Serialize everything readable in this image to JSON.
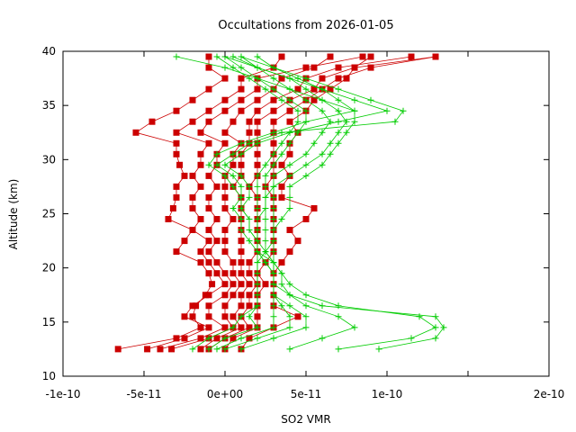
{
  "chart_data": {
    "type": "line",
    "title": "Occultations from 2026-01-05",
    "xlabel": "SO2 VMR",
    "ylabel": "Altitude (km)",
    "xlim": [
      -1e-10,
      2e-10
    ],
    "ylim": [
      10,
      40
    ],
    "x_ticks": [
      -1e-10,
      -5e-11,
      0,
      5e-11,
      1e-10,
      1.5e-10,
      2e-10
    ],
    "x_tick_labels": [
      "-1e-10",
      "-5e-11",
      "0e+00",
      "5e-11",
      "1e-10",
      "",
      "2e-10"
    ],
    "y_ticks": [
      10,
      15,
      20,
      25,
      30,
      35,
      40
    ],
    "y_tick_labels": [
      "10",
      "15",
      "20",
      "25",
      "30",
      "35",
      "40"
    ],
    "grid": false,
    "legend": "none",
    "colors": {
      "red_series": "#cc0000",
      "green_series": "#00cc00",
      "axis": "#000000"
    },
    "altitudes": [
      12.5,
      13.5,
      14.5,
      15.5,
      16.5,
      17.5,
      18.5,
      19.5,
      20.5,
      21.5,
      22.5,
      23.5,
      24.5,
      25.5,
      26.5,
      27.5,
      28.5,
      29.5,
      30.5,
      31.5,
      32.5,
      33.5,
      34.5,
      35.5,
      36.5,
      37.5,
      38.5,
      39.5
    ],
    "series": [
      {
        "style": "red-square",
        "x": [
          -6.6e-11,
          -3e-11,
          -1.5e-11,
          -2e-11,
          -1.8e-11,
          -1.2e-11,
          -8e-12,
          -1e-11,
          -1.5e-11,
          -3e-11,
          -2.5e-11,
          -2e-11,
          -3.5e-11,
          -3.2e-11,
          -3e-11,
          -3e-11,
          -2.5e-11,
          -2.8e-11,
          -3e-11,
          -3e-11,
          -5.5e-11,
          -4.5e-11,
          -3e-11,
          -2e-11,
          -1e-11,
          0,
          -1e-11,
          -1e-11
        ]
      },
      {
        "style": "red-square",
        "x": [
          -4.8e-11,
          -2.5e-11,
          -1e-11,
          -2.5e-11,
          -2e-11,
          -1e-11,
          0,
          -5e-12,
          -1e-11,
          -1.5e-11,
          -1e-11,
          -2e-11,
          -1.5e-11,
          -2e-11,
          -2e-11,
          -1.5e-11,
          -2e-11,
          -1.5e-11,
          -1.5e-11,
          -1e-11,
          -3e-11,
          -2e-11,
          -1e-11,
          0,
          1e-11,
          1e-11,
          3e-11,
          3.5e-11
        ]
      },
      {
        "style": "red-square",
        "x": [
          -4e-11,
          -1.5e-11,
          0,
          -1e-11,
          -1e-11,
          0,
          5e-12,
          0,
          -5e-12,
          -1e-11,
          -5e-12,
          -1e-11,
          -5e-12,
          -1e-11,
          -1e-11,
          -5e-12,
          -1e-11,
          -5e-12,
          -5e-12,
          0,
          -1.5e-11,
          -1e-11,
          0,
          1e-11,
          2e-11,
          2e-11,
          5e-11,
          8.5e-11
        ]
      },
      {
        "style": "red-square",
        "x": [
          -3.3e-11,
          -1e-11,
          5e-12,
          0,
          0,
          5e-12,
          1e-11,
          5e-12,
          5e-12,
          0,
          0,
          0,
          5e-12,
          0,
          0,
          0,
          0,
          5e-12,
          5e-12,
          1e-11,
          0,
          5e-12,
          1e-11,
          2e-11,
          3e-11,
          3.5e-11,
          5.5e-11,
          6.5e-11
        ]
      },
      {
        "style": "red-square",
        "x": [
          -1.5e-11,
          -5e-12,
          1e-11,
          5e-12,
          1e-11,
          1e-11,
          1.5e-11,
          1e-11,
          1e-11,
          1e-11,
          1e-11,
          1e-11,
          1e-11,
          1e-11,
          1e-11,
          5e-12,
          1e-11,
          1e-11,
          1e-11,
          1.5e-11,
          1.5e-11,
          1.5e-11,
          2e-11,
          3e-11,
          4.5e-11,
          5e-11,
          7e-11,
          1.15e-10
        ]
      },
      {
        "style": "red-square",
        "x": [
          -1e-11,
          0,
          1.5e-11,
          1e-11,
          1.5e-11,
          1.5e-11,
          2e-11,
          1.5e-11,
          1.5e-11,
          2e-11,
          2e-11,
          2e-11,
          2e-11,
          2e-11,
          2e-11,
          1.5e-11,
          2e-11,
          2e-11,
          2e-11,
          2e-11,
          2e-11,
          2e-11,
          3e-11,
          4e-11,
          5.5e-11,
          6e-11,
          8e-11,
          1.3e-10
        ]
      },
      {
        "style": "red-square",
        "x": [
          0,
          5e-12,
          2e-11,
          2e-11,
          2e-11,
          2e-11,
          2.5e-11,
          2e-11,
          2.5e-11,
          3e-11,
          3e-11,
          3e-11,
          3e-11,
          3e-11,
          3e-11,
          2.5e-11,
          3e-11,
          3e-11,
          3e-11,
          3e-11,
          3e-11,
          3e-11,
          4e-11,
          5e-11,
          6e-11,
          7e-11,
          9e-11,
          1.3e-10
        ]
      },
      {
        "style": "red-square",
        "x": [
          1e-11,
          1.5e-11,
          3e-11,
          4.5e-11,
          3e-11,
          3e-11,
          3e-11,
          3e-11,
          3.5e-11,
          4e-11,
          4.5e-11,
          4e-11,
          5e-11,
          5.5e-11,
          3.5e-11,
          3.5e-11,
          4e-11,
          3.5e-11,
          4e-11,
          4e-11,
          4.5e-11,
          4e-11,
          5e-11,
          5.5e-11,
          6.5e-11,
          7.5e-11,
          8e-11,
          9e-11
        ]
      },
      {
        "style": "green-plus",
        "x": [
          -2e-11,
          -1e-11,
          5e-12,
          1e-11,
          2e-11,
          2e-11,
          2e-11,
          2e-11,
          2e-11,
          2.5e-11,
          3e-11,
          3e-11,
          3.5e-11,
          4e-11,
          4e-11,
          4e-11,
          5e-11,
          6e-11,
          6.5e-11,
          7e-11,
          7.5e-11,
          8e-11,
          8e-11,
          7e-11,
          6e-11,
          4.5e-11,
          3e-11,
          2e-11
        ]
      },
      {
        "style": "green-plus",
        "x": [
          -1e-11,
          0,
          2e-11,
          1.5e-11,
          2e-11,
          2e-11,
          2e-11,
          2e-11,
          2e-11,
          2e-11,
          2e-11,
          2e-11,
          2e-11,
          2.5e-11,
          2.5e-11,
          3e-11,
          4e-11,
          5e-11,
          6e-11,
          6.5e-11,
          7e-11,
          7.5e-11,
          7e-11,
          6e-11,
          5e-11,
          4e-11,
          2e-11,
          1e-11
        ]
      },
      {
        "style": "green-plus",
        "x": [
          -5e-12,
          1e-11,
          3e-11,
          3e-11,
          3e-11,
          3e-11,
          3e-11,
          3e-11,
          3e-11,
          3e-11,
          3e-11,
          3e-11,
          3e-11,
          3e-11,
          3e-11,
          3e-11,
          3e-11,
          4e-11,
          5e-11,
          5.5e-11,
          6e-11,
          6.5e-11,
          6e-11,
          5e-11,
          4e-11,
          3e-11,
          2e-11,
          5e-12
        ]
      },
      {
        "style": "green-plus",
        "x": [
          0,
          2e-11,
          4e-11,
          4e-11,
          3.5e-11,
          3e-11,
          3e-11,
          3e-11,
          3e-11,
          2.5e-11,
          2.5e-11,
          2.5e-11,
          2.5e-11,
          2.5e-11,
          2.5e-11,
          2.5e-11,
          2.5e-11,
          3e-11,
          3.5e-11,
          4e-11,
          4.5e-11,
          5e-11,
          5e-11,
          4e-11,
          3e-11,
          2e-11,
          1e-11,
          0
        ]
      },
      {
        "style": "green-plus",
        "x": [
          1e-11,
          3e-11,
          5e-11,
          5e-11,
          4e-11,
          3e-11,
          3e-11,
          3e-11,
          2.5e-11,
          2e-11,
          2e-11,
          2e-11,
          2e-11,
          2e-11,
          2e-11,
          2e-11,
          2e-11,
          2.5e-11,
          3e-11,
          3.5e-11,
          4e-11,
          4.5e-11,
          4.5e-11,
          3.5e-11,
          2.5e-11,
          1.5e-11,
          5e-12,
          -5e-12
        ]
      },
      {
        "style": "green-plus",
        "x": [
          4e-11,
          6e-11,
          8e-11,
          7e-11,
          5e-11,
          4e-11,
          3.5e-11,
          3.5e-11,
          3e-11,
          2e-11,
          2e-11,
          1.5e-11,
          1.5e-11,
          1e-11,
          1.5e-11,
          1.5e-11,
          1e-11,
          0,
          1e-11,
          2e-11,
          4e-11,
          7e-11,
          1e-10,
          8e-11,
          6e-11,
          4e-11,
          2e-11,
          0
        ]
      },
      {
        "style": "green-plus",
        "x": [
          9.5e-11,
          1.3e-10,
          1.35e-10,
          1.3e-10,
          6e-11,
          4e-11,
          3e-11,
          3e-11,
          2.5e-11,
          2e-11,
          1.5e-11,
          1e-11,
          1e-11,
          5e-12,
          1e-11,
          1e-11,
          5e-12,
          -5e-12,
          5e-12,
          1.5e-11,
          3.5e-11,
          1.05e-10,
          1.1e-10,
          9e-11,
          7e-11,
          5e-11,
          3e-11,
          1e-11
        ]
      },
      {
        "style": "green-plus",
        "x": [
          7e-11,
          1.15e-10,
          1.3e-10,
          1.2e-10,
          7e-11,
          5e-11,
          4e-11,
          3.5e-11,
          3e-11,
          2.5e-11,
          2e-11,
          1.5e-11,
          1.5e-11,
          1e-11,
          1e-11,
          5e-12,
          0,
          -1e-11,
          -5e-12,
          1e-11,
          3e-11,
          5e-11,
          8e-11,
          6e-11,
          4e-11,
          2e-11,
          0,
          -3e-11
        ]
      }
    ]
  }
}
